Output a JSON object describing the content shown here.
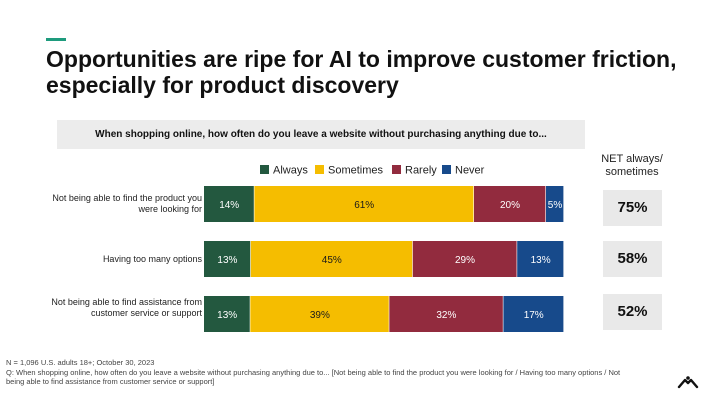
{
  "header": {
    "title": "Opportunities are ripe for AI to improve customer friction, especially for product discovery"
  },
  "chart_data": {
    "type": "bar",
    "orientation": "horizontal",
    "stacked": true,
    "percent": true,
    "title": "When shopping online, how often do you leave a website without purchasing anything due to...",
    "categories": [
      "Not being able to find the product you were looking for",
      "Having too many options",
      "Not being able to find assistance from customer service or support"
    ],
    "series": [
      {
        "name": "Always",
        "color": "#23583f",
        "values": [
          14,
          13,
          13
        ]
      },
      {
        "name": "Sometimes",
        "color": "#f5bd00",
        "values": [
          61,
          45,
          39
        ]
      },
      {
        "name": "Rarely",
        "color": "#922b3e",
        "values": [
          20,
          29,
          32
        ]
      },
      {
        "name": "Never",
        "color": "#174a8b",
        "values": [
          5,
          13,
          17
        ]
      }
    ],
    "xlim": [
      0,
      100
    ],
    "legend": "top",
    "net": {
      "header": "NET always/ sometimes",
      "values": [
        "75%",
        "58%",
        "52%"
      ]
    }
  },
  "footnote": {
    "sample": "N = 1,096 U.S. adults 18+; October 30, 2023",
    "question": "Q: When shopping online, how often do you leave a website without purchasing anything due to... [Not being able to find the product you were looking for / Having too many options / Not being able to find assistance from customer service or support]"
  }
}
